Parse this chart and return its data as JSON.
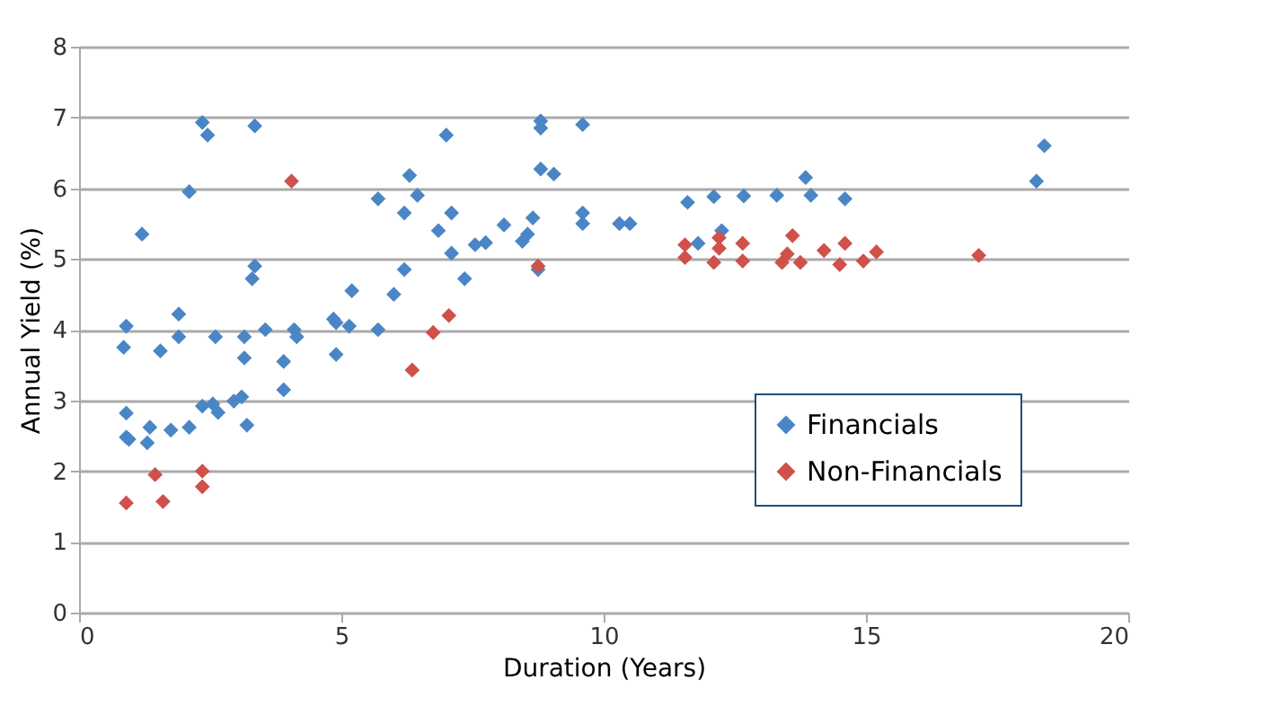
{
  "chart_data": {
    "type": "scatter",
    "xlabel": "Duration (Years)",
    "ylabel": "Annual Yield (%)",
    "xlim": [
      0,
      20
    ],
    "xticks": [
      0,
      5,
      10,
      15,
      20
    ],
    "ylim": [
      0,
      8
    ],
    "yticks": [
      0,
      1,
      2,
      3,
      4,
      5,
      6,
      7,
      8
    ],
    "grid": "y",
    "legend": "bottom right",
    "marker": "diamond",
    "series": [
      {
        "name": "Financials",
        "color": "#4a86c6",
        "x": [
          0.9,
          0.85,
          0.9,
          0.9,
          0.95,
          1.2,
          1.3,
          1.35,
          1.55,
          1.75,
          1.9,
          1.9,
          2.1,
          2.1,
          2.35,
          2.45,
          2.35,
          2.55,
          2.6,
          2.65,
          2.95,
          3.1,
          3.15,
          3.15,
          3.2,
          3.35,
          3.35,
          3.3,
          3.55,
          3.9,
          3.9,
          4.1,
          4.15,
          4.85,
          4.9,
          4.9,
          5.15,
          5.2,
          5.7,
          5.7,
          6.0,
          6.2,
          6.3,
          6.45,
          6.2,
          6.85,
          7.0,
          7.1,
          7.1,
          7.35,
          7.55,
          7.75,
          8.1,
          8.45,
          8.55,
          8.65,
          8.75,
          8.8,
          8.8,
          8.8,
          9.05,
          9.6,
          9.6,
          9.6,
          10.3,
          10.5,
          11.6,
          11.8,
          12.1,
          12.25,
          12.67,
          13.3,
          13.85,
          13.95,
          14.6,
          18.25,
          18.4
        ],
        "values": [
          4.05,
          3.75,
          2.82,
          2.48,
          2.45,
          5.35,
          2.4,
          2.62,
          3.7,
          2.58,
          4.22,
          3.9,
          5.95,
          2.62,
          6.93,
          6.75,
          2.92,
          2.95,
          3.9,
          2.83,
          2.99,
          3.05,
          3.6,
          3.9,
          2.65,
          6.88,
          4.9,
          4.72,
          4.0,
          3.55,
          3.15,
          4.0,
          3.9,
          4.15,
          4.1,
          3.65,
          4.05,
          4.55,
          4.0,
          5.85,
          4.5,
          5.65,
          6.18,
          5.9,
          4.85,
          5.4,
          6.75,
          5.65,
          5.08,
          4.72,
          5.2,
          5.23,
          5.48,
          5.25,
          5.35,
          5.58,
          4.85,
          6.95,
          6.85,
          6.27,
          6.2,
          6.9,
          5.65,
          5.5,
          5.5,
          5.5,
          5.8,
          5.22,
          5.88,
          5.4,
          5.89,
          5.9,
          6.15,
          5.9,
          5.85,
          6.1,
          6.6
        ]
      },
      {
        "name": "Non-Financials",
        "color": "#d0504a",
        "x": [
          0.9,
          1.45,
          1.6,
          2.35,
          2.35,
          4.05,
          6.35,
          6.75,
          7.05,
          8.75,
          11.55,
          11.55,
          12.1,
          12.2,
          12.2,
          12.65,
          12.65,
          13.4,
          13.5,
          13.6,
          13.75,
          14.2,
          14.5,
          14.6,
          14.95,
          15.2,
          17.15
        ],
        "values": [
          1.55,
          1.95,
          1.57,
          2.0,
          1.78,
          6.1,
          3.43,
          3.96,
          4.2,
          4.9,
          5.2,
          5.02,
          4.95,
          5.3,
          5.15,
          5.22,
          4.97,
          4.95,
          5.07,
          5.33,
          4.95,
          5.12,
          4.92,
          5.22,
          4.97,
          5.1,
          5.05
        ]
      }
    ]
  }
}
